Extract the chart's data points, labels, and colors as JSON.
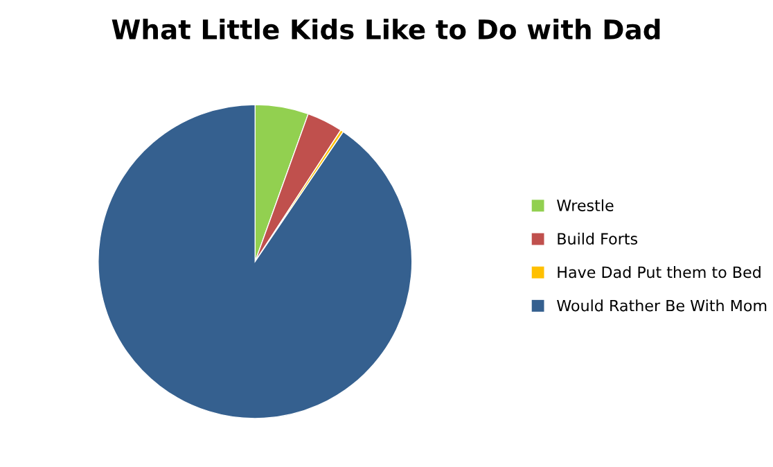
{
  "chart_data": {
    "type": "pie",
    "title": "What Little Kids Like to Do with Dad",
    "categories": [
      "Wrestle",
      "Build Forts",
      "Have Dad Put them to Bed",
      "Would Rather Be With Mom"
    ],
    "values": [
      5.5,
      3.7,
      0.3,
      90.5
    ],
    "colors": [
      "#92d050",
      "#c0504d",
      "#ffc000",
      "#35608f"
    ],
    "legend": "right"
  }
}
